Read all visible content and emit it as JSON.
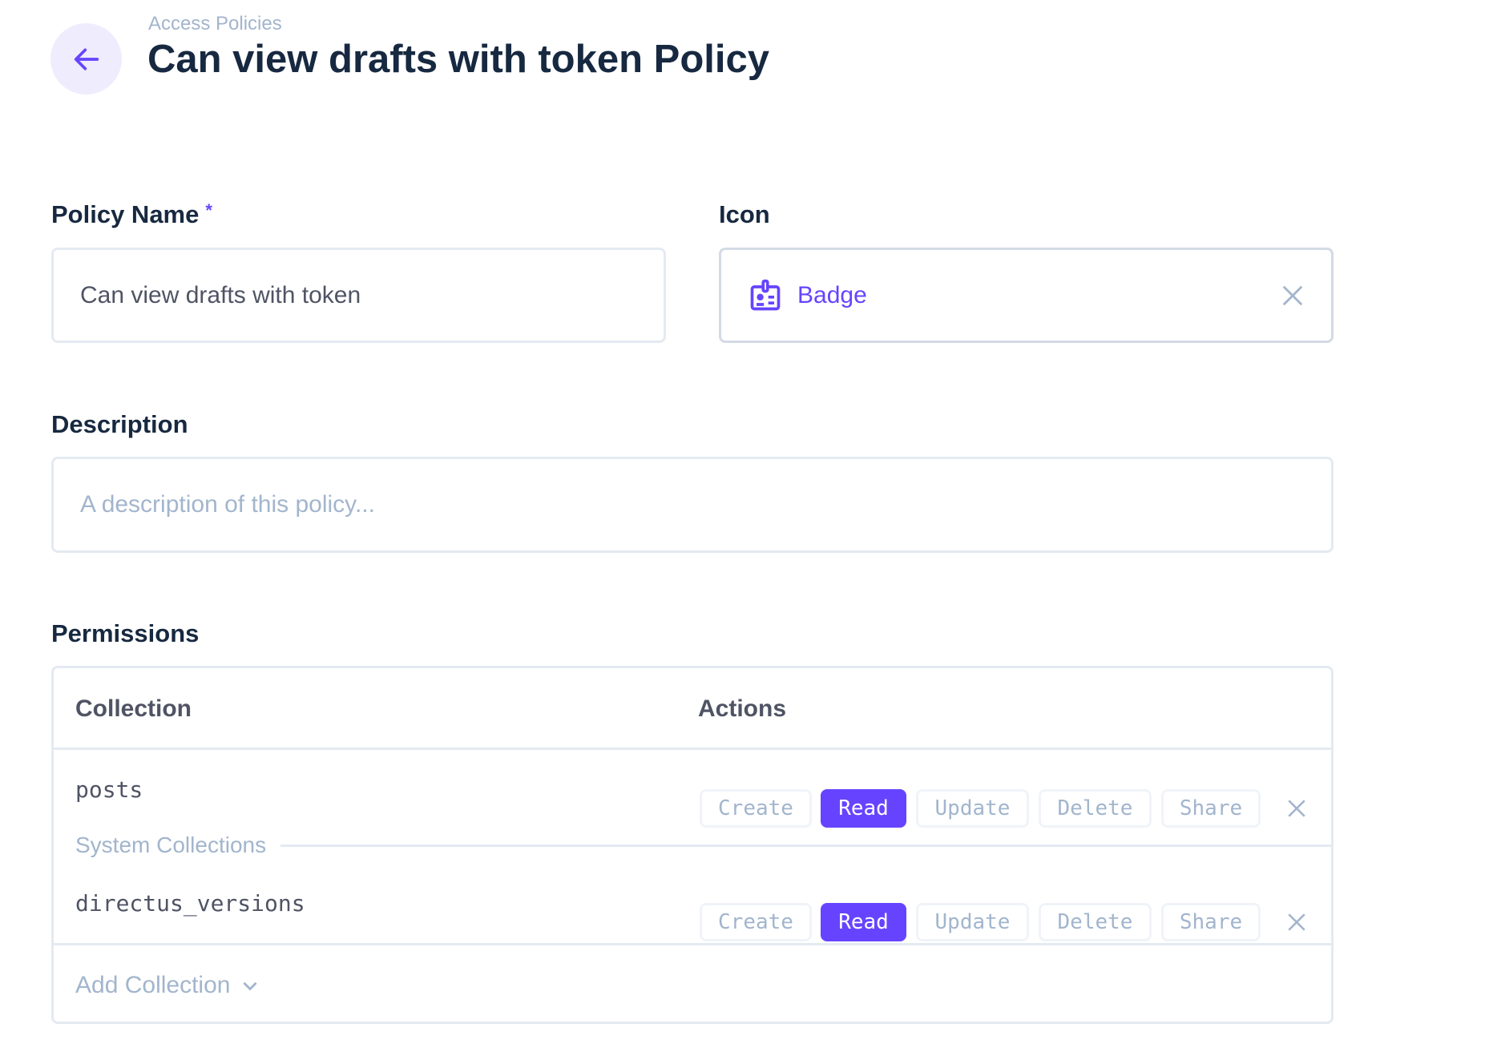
{
  "header": {
    "breadcrumb": "Access Policies",
    "title": "Can view drafts with token Policy"
  },
  "form": {
    "policy_name": {
      "label": "Policy Name",
      "required_mark": "*",
      "value": "Can view drafts with token"
    },
    "icon": {
      "label": "Icon",
      "value": "Badge",
      "icon": "badge-icon"
    },
    "description": {
      "label": "Description",
      "placeholder": "A description of this policy..."
    }
  },
  "permissions": {
    "label": "Permissions",
    "columns": [
      "Collection",
      "Actions"
    ],
    "actions": [
      "Create",
      "Read",
      "Update",
      "Delete",
      "Share"
    ],
    "rows": [
      {
        "collection": "posts",
        "enabled": [
          "Read"
        ]
      },
      {
        "collection": "directus_versions",
        "enabled": [
          "Read"
        ]
      }
    ],
    "group_label": "System Collections",
    "add_label": "Add Collection"
  },
  "colors": {
    "accent": "#6644ff",
    "muted": "#a2b5cd",
    "text": "#172940"
  }
}
